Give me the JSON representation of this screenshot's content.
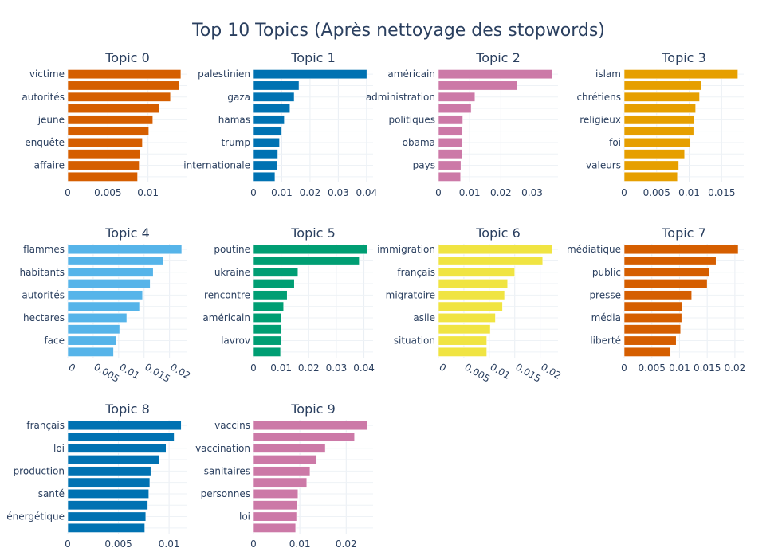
{
  "title": "Top 10 Topics (Après nettoyage des stopwords)",
  "chart_data": [
    {
      "type": "bar",
      "orientation": "horizontal",
      "title": "Topic 0",
      "color": "#D55E00",
      "bars": [
        0.0141,
        0.0139,
        0.0128,
        0.0114,
        0.0106,
        0.0101,
        0.0093,
        0.009,
        0.0089,
        0.0087
      ],
      "labels": [
        "victime",
        "autorités",
        "jeune",
        "enquête",
        "affaire"
      ],
      "xlim": [
        0,
        0.0149
      ],
      "ticks": [
        0,
        0.005,
        0.01
      ],
      "tick_labels": [
        "0",
        "0.005",
        "0.01"
      ],
      "rotated": false
    },
    {
      "type": "bar",
      "orientation": "horizontal",
      "title": "Topic 1",
      "color": "#0072B2",
      "bars": [
        0.0401,
        0.0161,
        0.0144,
        0.0129,
        0.0109,
        0.01,
        0.0092,
        0.0086,
        0.0083,
        0.0076
      ],
      "labels": [
        "palestinien",
        "gaza",
        "hamas",
        "trump",
        "internationale"
      ],
      "xlim": [
        0,
        0.0423
      ],
      "ticks": [
        0,
        0.01,
        0.02,
        0.03,
        0.04
      ],
      "tick_labels": [
        "0",
        "0.01",
        "0.02",
        "0.03",
        "0.04"
      ],
      "rotated": false
    },
    {
      "type": "bar",
      "orientation": "horizontal",
      "title": "Topic 2",
      "color": "#CC79A7",
      "bars": [
        0.0365,
        0.0252,
        0.0117,
        0.0105,
        0.0078,
        0.0077,
        0.0077,
        0.0076,
        0.0072,
        0.0071
      ],
      "labels": [
        "américain",
        "administration",
        "politiques",
        "obama",
        "pays"
      ],
      "xlim": [
        0,
        0.0383
      ],
      "ticks": [
        0,
        0.01,
        0.02,
        0.03
      ],
      "tick_labels": [
        "0",
        "0.01",
        "0.02",
        "0.03"
      ],
      "rotated": false
    },
    {
      "type": "bar",
      "orientation": "horizontal",
      "title": "Topic 3",
      "color": "#E69F00",
      "bars": [
        0.0175,
        0.0119,
        0.0116,
        0.011,
        0.0108,
        0.0107,
        0.0102,
        0.0093,
        0.0084,
        0.0082
      ],
      "labels": [
        "islam",
        "chrétiens",
        "religieux",
        "foi",
        "valeurs"
      ],
      "xlim": [
        0,
        0.0184
      ],
      "ticks": [
        0,
        0.005,
        0.01,
        0.015
      ],
      "tick_labels": [
        "0",
        "0.005",
        "0.01",
        "0.015"
      ],
      "rotated": false
    },
    {
      "type": "bar",
      "orientation": "horizontal",
      "title": "Topic 4",
      "color": "#56B4E9",
      "bars": [
        0.0224,
        0.0188,
        0.0168,
        0.0162,
        0.0147,
        0.0141,
        0.0116,
        0.0102,
        0.0096,
        0.009
      ],
      "labels": [
        "flammes",
        "habitants",
        "autorités",
        "hectares",
        "face"
      ],
      "xlim": [
        0,
        0.0235
      ],
      "ticks": [
        0,
        0.005,
        0.01,
        0.015,
        0.02
      ],
      "tick_labels": [
        "0",
        "0.005",
        "0.01",
        "0.015",
        "0.02"
      ],
      "rotated": true
    },
    {
      "type": "bar",
      "orientation": "horizontal",
      "title": "Topic 5",
      "color": "#009E73",
      "bars": [
        0.0412,
        0.0383,
        0.0161,
        0.0148,
        0.0122,
        0.0109,
        0.0101,
        0.01,
        0.0099,
        0.0098
      ],
      "labels": [
        "poutine",
        "ukraine",
        "rencontre",
        "américain",
        "lavrov"
      ],
      "xlim": [
        0,
        0.0433
      ],
      "ticks": [
        0,
        0.01,
        0.02,
        0.03,
        0.04
      ],
      "tick_labels": [
        "0",
        "0.01",
        "0.02",
        "0.03",
        "0.04"
      ],
      "rotated": false
    },
    {
      "type": "bar",
      "orientation": "horizontal",
      "title": "Topic 6",
      "color": "#F0E442",
      "bars": [
        0.0224,
        0.0205,
        0.015,
        0.0136,
        0.013,
        0.0126,
        0.0112,
        0.0102,
        0.0095,
        0.0095
      ],
      "labels": [
        "immigration",
        "français",
        "migratoire",
        "asile",
        "situation"
      ],
      "xlim": [
        0,
        0.0235
      ],
      "ticks": [
        0,
        0.005,
        0.01,
        0.015,
        0.02
      ],
      "tick_labels": [
        "0",
        "0.005",
        "0.01",
        "0.015",
        "0.02"
      ],
      "rotated": true
    },
    {
      "type": "bar",
      "orientation": "horizontal",
      "title": "Topic 7",
      "color": "#D55E00",
      "bars": [
        0.0206,
        0.0166,
        0.0154,
        0.015,
        0.0122,
        0.0105,
        0.0104,
        0.0102,
        0.0094,
        0.0084
      ],
      "labels": [
        "médiatique",
        "public",
        "presse",
        "média",
        "liberté"
      ],
      "xlim": [
        0,
        0.0216
      ],
      "ticks": [
        0,
        0.005,
        0.01,
        0.015,
        0.02
      ],
      "tick_labels": [
        "0",
        "0.005",
        "0.01",
        "0.015",
        "0.02"
      ],
      "rotated": false
    },
    {
      "type": "bar",
      "orientation": "horizontal",
      "title": "Topic 8",
      "color": "#0072B2",
      "bars": [
        0.0112,
        0.0105,
        0.0097,
        0.009,
        0.0082,
        0.0081,
        0.008,
        0.0079,
        0.0077,
        0.0076
      ],
      "labels": [
        "français",
        "loi",
        "production",
        "santé",
        "énergétique"
      ],
      "xlim": [
        0,
        0.0118
      ],
      "ticks": [
        0,
        0.005,
        0.01
      ],
      "tick_labels": [
        "0",
        "0.005",
        "0.01"
      ],
      "rotated": false
    },
    {
      "type": "bar",
      "orientation": "horizontal",
      "title": "Topic 9",
      "color": "#CC79A7",
      "bars": [
        0.0246,
        0.0218,
        0.0155,
        0.0136,
        0.0122,
        0.0115,
        0.0096,
        0.0095,
        0.0093,
        0.0091
      ],
      "labels": [
        "vaccins",
        "vaccination",
        "sanitaires",
        "personnes",
        "loi"
      ],
      "xlim": [
        0,
        0.0258
      ],
      "ticks": [
        0,
        0.01,
        0.02
      ],
      "tick_labels": [
        "0",
        "0.01",
        "0.02"
      ],
      "rotated": false
    }
  ]
}
